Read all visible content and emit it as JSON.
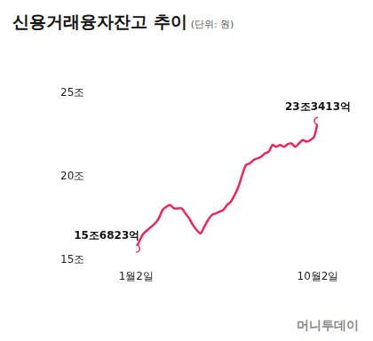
{
  "chart_data": {
    "type": "line",
    "title": "신용거래융자잔고 추이",
    "subtitle": "(단위: 원)",
    "source": "머니투데이",
    "categories": [
      "1월2일",
      null,
      null,
      null,
      null,
      null,
      null,
      null,
      null,
      null,
      null,
      null,
      null,
      null,
      null,
      null,
      null,
      null,
      null,
      null,
      null,
      null,
      null,
      null,
      null,
      null,
      null,
      null,
      null,
      null,
      null,
      null,
      null,
      null,
      null,
      null,
      null,
      null,
      null,
      null,
      null,
      null,
      null,
      null,
      null,
      null,
      null,
      null,
      "10월2일"
    ],
    "values": [
      15.6823,
      16.2,
      16.6,
      16.8,
      17.0,
      17.2,
      17.5,
      18.0,
      18.2,
      18.3,
      18.1,
      18.1,
      18.1,
      17.8,
      17.5,
      17.1,
      16.8,
      16.6,
      17.0,
      17.4,
      17.7,
      17.8,
      17.9,
      18.0,
      18.3,
      18.5,
      18.9,
      19.4,
      20.1,
      20.7,
      20.8,
      21.0,
      21.1,
      21.2,
      21.4,
      21.5,
      21.9,
      21.8,
      21.9,
      21.8,
      21.95,
      22.0,
      21.8,
      22.0,
      22.2,
      22.1,
      22.2,
      22.4,
      23.3413
    ],
    "value_labels": [
      "15조6823억",
      null,
      null,
      null,
      null,
      null,
      null,
      null,
      null,
      null,
      null,
      null,
      null,
      null,
      null,
      null,
      null,
      null,
      null,
      null,
      null,
      null,
      null,
      null,
      null,
      null,
      null,
      null,
      null,
      null,
      null,
      null,
      null,
      null,
      null,
      null,
      null,
      null,
      null,
      null,
      null,
      null,
      null,
      null,
      null,
      null,
      null,
      null,
      "23조3413억"
    ],
    "color": "#e8285a",
    "marker": "circle",
    "ylim": [
      15,
      25
    ],
    "yticks": [
      {
        "value": 15,
        "label": "15조"
      },
      {
        "value": 20,
        "label": "20조"
      },
      {
        "value": 25,
        "label": "25조"
      }
    ],
    "grid": false
  }
}
